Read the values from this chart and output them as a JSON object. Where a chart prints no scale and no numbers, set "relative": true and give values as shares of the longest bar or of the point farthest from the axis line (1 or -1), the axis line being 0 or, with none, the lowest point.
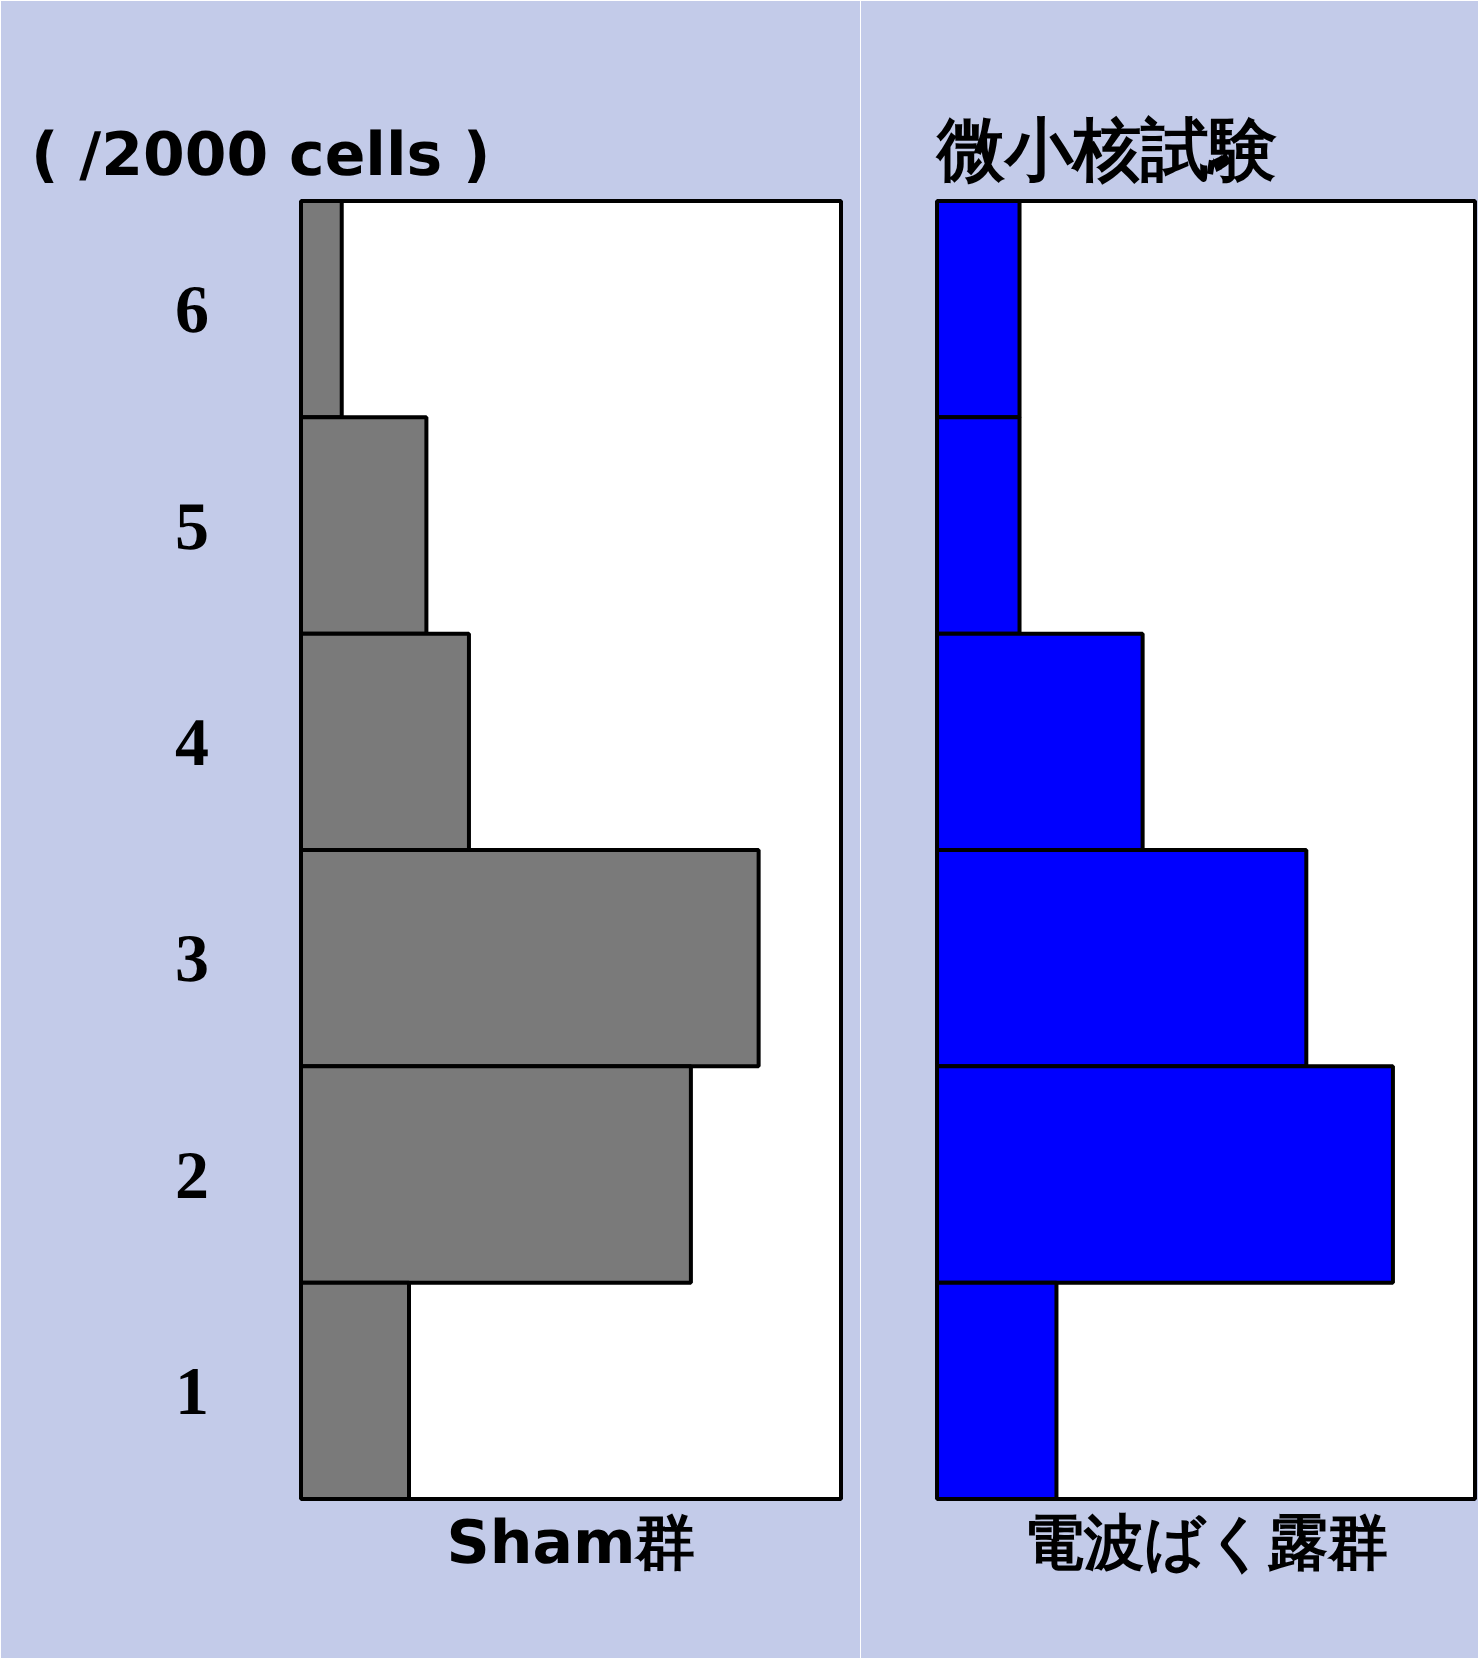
{
  "chart_data": [
    {
      "type": "bar",
      "orientation": "horizontal",
      "relative": true,
      "title": "( /2000 cells )",
      "xlabel": "Sham群",
      "categories": [
        "6",
        "5",
        "4",
        "3",
        "2",
        "1"
      ],
      "tick_labels": "y",
      "grid": false,
      "series": [
        {
          "color": "#7a7a7a",
          "values": [
            0.089,
            0.274,
            0.367,
            1,
            0.852,
            0.236
          ]
        }
      ]
    },
    {
      "type": "bar",
      "orientation": "horizontal",
      "relative": true,
      "title": "微小核試験",
      "xlabel": "電波ばく露群",
      "categories": [
        "6",
        "5",
        "4",
        "3",
        "2",
        "1"
      ],
      "tick_labels": false,
      "grid": false,
      "series": [
        {
          "color": "#0000ff",
          "values": [
            0.181,
            0.181,
            0.451,
            0.81,
            1,
            0.262
          ]
        }
      ]
    }
  ]
}
